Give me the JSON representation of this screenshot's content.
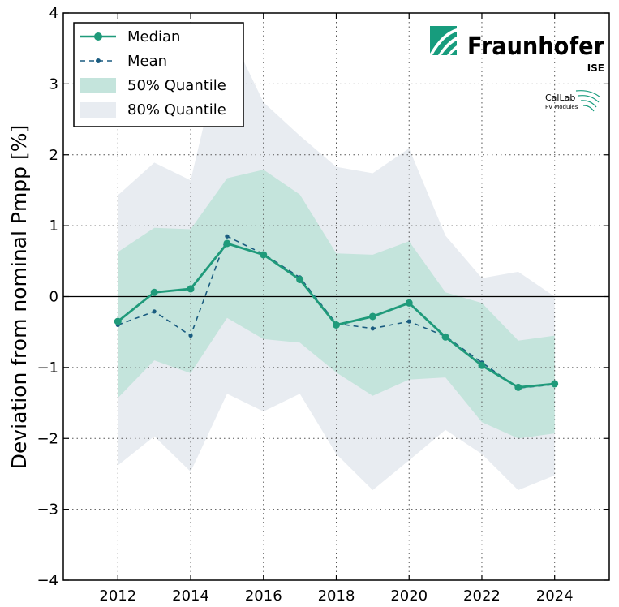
{
  "chart_data": {
    "type": "line",
    "title": "",
    "xlabel": "",
    "ylabel": "Deviation from nominal Pmpp [%]",
    "xlim": [
      2010.5,
      2025.5
    ],
    "ylim": [
      -4,
      4
    ],
    "x": [
      2012,
      2013,
      2014,
      2015,
      2016,
      2017,
      2018,
      2019,
      2020,
      2021,
      2022,
      2023,
      2024
    ],
    "x_ticks": [
      2012,
      2014,
      2016,
      2018,
      2020,
      2022,
      2024
    ],
    "x_tick_labels": [
      "2012",
      "2014",
      "2016",
      "2018",
      "2020",
      "2022",
      "2024"
    ],
    "y_ticks": [
      -4,
      -3,
      -2,
      -1,
      0,
      1,
      2,
      3,
      4
    ],
    "y_tick_labels": [
      "−4",
      "−3",
      "−2",
      "−1",
      "0",
      "1",
      "2",
      "3",
      "4"
    ],
    "grid": "dotted",
    "zero_line": 0,
    "legend_position": "top-left",
    "series": [
      {
        "name": "Median",
        "color": "#1f9a7a",
        "values": [
          -0.35,
          0.06,
          0.11,
          0.75,
          0.59,
          0.24,
          -0.4,
          -0.28,
          -0.09,
          -0.57,
          -0.97,
          -1.28,
          -1.23
        ]
      },
      {
        "name": "Mean",
        "color": "#1a5c80",
        "values": [
          -0.4,
          -0.21,
          -0.55,
          0.85,
          0.6,
          0.27,
          -0.38,
          -0.45,
          -0.35,
          -0.56,
          -0.93,
          -1.29,
          -1.24
        ]
      }
    ],
    "bands": [
      {
        "name": "80% Quantile",
        "color": "#e8ecf1",
        "lower": [
          -2.38,
          -1.97,
          -2.47,
          -1.37,
          -1.62,
          -1.37,
          -2.22,
          -2.73,
          -2.31,
          -1.88,
          -2.22,
          -2.73,
          -2.52
        ],
        "upper": [
          1.43,
          1.89,
          1.64,
          3.81,
          2.74,
          2.27,
          1.83,
          1.74,
          2.09,
          0.86,
          0.26,
          0.35,
          0.0
        ]
      },
      {
        "name": "50% Quantile",
        "color": "#c4e4dc",
        "lower": [
          -1.43,
          -0.9,
          -1.08,
          -0.3,
          -0.6,
          -0.65,
          -1.07,
          -1.4,
          -1.17,
          -1.14,
          -1.77,
          -2.0,
          -1.93
        ],
        "upper": [
          0.63,
          0.97,
          0.95,
          1.67,
          1.79,
          1.44,
          0.61,
          0.59,
          0.78,
          0.06,
          -0.09,
          -0.62,
          -0.55
        ]
      }
    ]
  },
  "legend": {
    "median_label": "Median",
    "mean_label": "Mean",
    "q50_label": "50% Quantile",
    "q80_label": "80% Quantile"
  },
  "logo": {
    "name": "Fraunhofer",
    "sub": "ISE",
    "callab_title": "CalLab",
    "callab_sub": "PV Modules",
    "color": "#179c7d"
  }
}
